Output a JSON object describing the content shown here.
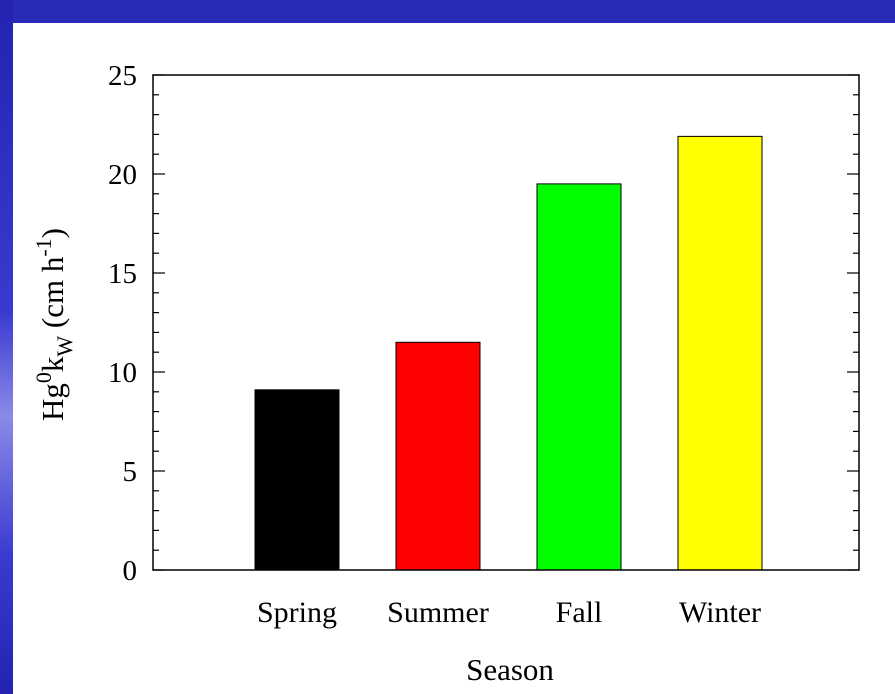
{
  "chart_data": {
    "type": "bar",
    "categories": [
      "Spring",
      "Summer",
      "Fall",
      "Winter"
    ],
    "values": [
      9.1,
      11.5,
      19.5,
      21.9
    ],
    "colors": [
      "#000000",
      "#ff0000",
      "#00ff00",
      "#ffff00"
    ],
    "ylim": [
      0,
      25
    ],
    "yticks": [
      "0",
      "5",
      "10",
      "15",
      "20",
      "25"
    ],
    "xlabel": "Season",
    "ylabel": {
      "base": "Hg",
      "sup1": "0",
      "k": "k",
      "sub": "W",
      "unit_open": " (cm h",
      "sup2": "-1",
      "unit_close": ")"
    },
    "grid": false,
    "legend": "none"
  },
  "theme": {
    "background": "#2a2ab8",
    "panel": "#ffffff"
  }
}
